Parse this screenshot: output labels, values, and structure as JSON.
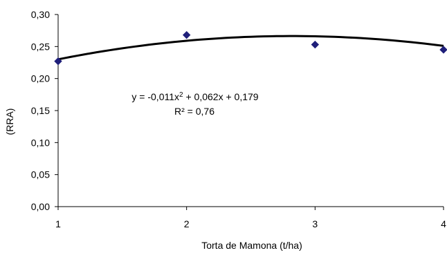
{
  "chart_data": {
    "type": "scatter",
    "xlabel": "Torta de Mamona (t/ha)",
    "ylabel": "(RRA)",
    "xlim": [
      1,
      4
    ],
    "ylim": [
      0,
      0.3
    ],
    "x_ticks": [
      "1",
      "2",
      "3",
      "4"
    ],
    "y_ticks": [
      "0,00",
      "0,05",
      "0,10",
      "0,15",
      "0,20",
      "0,25",
      "0,30"
    ],
    "grid": false,
    "legend": "none",
    "series": [
      {
        "x": [
          1,
          2,
          3,
          4
        ],
        "y": [
          0.227,
          0.268,
          0.253,
          0.245
        ],
        "marker_color": "#1f1f7a"
      }
    ],
    "trendline": {
      "type": "polynomial",
      "coefficients": [
        -0.011,
        0.062,
        0.179
      ],
      "color": "#000000"
    },
    "annotations": {
      "equation_prefix": "y = -0,011x",
      "equation_sup": "2",
      "equation_suffix": " + 0,062x + 0,179",
      "r2": "R² = 0,76"
    }
  }
}
